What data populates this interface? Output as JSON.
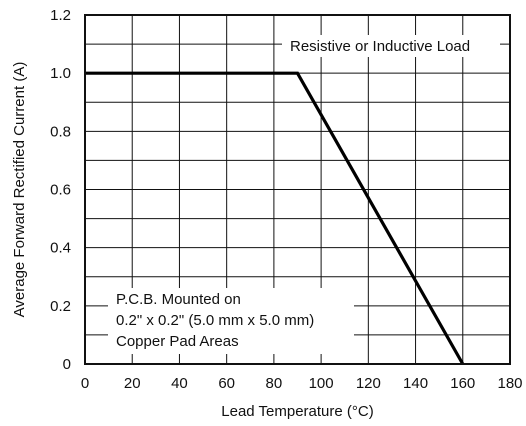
{
  "chart_data": {
    "type": "line",
    "xlabel": "Lead Temperature (°C)",
    "ylabel": "Average Forward Rectified Current (A)",
    "xlim": [
      0,
      180
    ],
    "ylim": [
      0,
      1.2
    ],
    "xticks": [
      0,
      20,
      40,
      60,
      80,
      100,
      120,
      140,
      160,
      180
    ],
    "yticks": [
      0,
      0.2,
      0.4,
      0.6,
      0.8,
      1.0,
      1.2
    ],
    "ytick_labels": [
      "0",
      "0.2",
      "0.4",
      "0.6",
      "0.8",
      "1.0",
      "1.2"
    ],
    "grid": true,
    "minor_grid": "horizontal lines every 0.1 A",
    "series": [
      {
        "x": [
          0,
          90,
          160
        ],
        "y": [
          1.0,
          1.0,
          0
        ]
      }
    ],
    "annotations": {
      "load": "Resistive or Inductive Load",
      "mount_lines": [
        "P.C.B. Mounted on",
        "0.2\" x 0.2\" (5.0 mm x 5.0 mm)",
        "Copper Pad Areas"
      ]
    }
  }
}
